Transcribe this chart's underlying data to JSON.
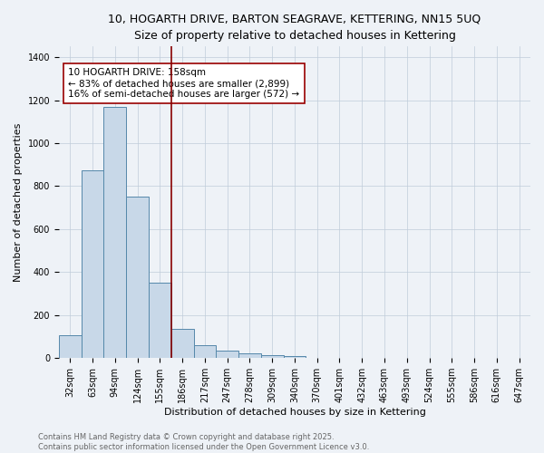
{
  "title_line1": "10, HOGARTH DRIVE, BARTON SEAGRAVE, KETTERING, NN15 5UQ",
  "title_line2": "Size of property relative to detached houses in Kettering",
  "xlabel": "Distribution of detached houses by size in Kettering",
  "ylabel": "Number of detached properties",
  "categories": [
    "32sqm",
    "63sqm",
    "94sqm",
    "124sqm",
    "155sqm",
    "186sqm",
    "217sqm",
    "247sqm",
    "278sqm",
    "309sqm",
    "340sqm",
    "370sqm",
    "401sqm",
    "432sqm",
    "463sqm",
    "493sqm",
    "524sqm",
    "555sqm",
    "586sqm",
    "616sqm",
    "647sqm"
  ],
  "values": [
    105,
    875,
    1170,
    750,
    350,
    137,
    62,
    35,
    22,
    14,
    10,
    0,
    0,
    0,
    0,
    0,
    0,
    0,
    0,
    0,
    0
  ],
  "bar_color": "#c8d8e8",
  "bar_edge_color": "#5588aa",
  "vline_x": 4.5,
  "vline_color": "#880000",
  "annotation_text": "10 HOGARTH DRIVE: 158sqm\n← 83% of detached houses are smaller (2,899)\n16% of semi-detached houses are larger (572) →",
  "ylim": [
    0,
    1450
  ],
  "yticks": [
    0,
    200,
    400,
    600,
    800,
    1000,
    1200,
    1400
  ],
  "footer_line1": "Contains HM Land Registry data © Crown copyright and database right 2025.",
  "footer_line2": "Contains public sector information licensed under the Open Government Licence v3.0.",
  "bg_color": "#eef2f7",
  "grid_color": "#c0ccda",
  "title_fontsize": 9,
  "subtitle_fontsize": 8.5,
  "axis_label_fontsize": 8,
  "tick_fontsize": 7,
  "annotation_fontsize": 7.5,
  "footer_fontsize": 6
}
